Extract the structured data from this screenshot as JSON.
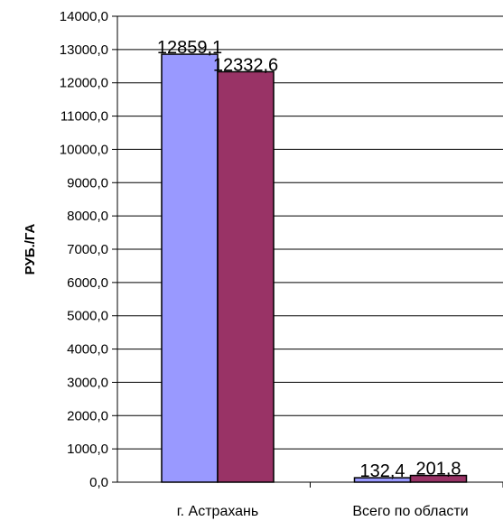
{
  "chart_data": {
    "type": "bar",
    "title": "",
    "xlabel": "",
    "ylabel": "РУБ./ГА",
    "ylim": [
      0,
      14000
    ],
    "ytick_step": 1000,
    "ytick_labels": [
      "0,0",
      "1000,0",
      "2000,0",
      "3000,0",
      "4000,0",
      "5000,0",
      "6000,0",
      "7000,0",
      "8000,0",
      "9000,0",
      "10000,0",
      "11000,0",
      "12000,0",
      "13000,0",
      "14000,0"
    ],
    "grid": true,
    "legend": "none",
    "categories": [
      "г. Астрахань",
      "Всего по области"
    ],
    "series": [
      {
        "values": [
          12859.1,
          132.4
        ],
        "labels": [
          "12859,1",
          "132,4"
        ],
        "color": "#9999ff"
      },
      {
        "values": [
          12332.6,
          201.8
        ],
        "labels": [
          "12332,6",
          "201,8"
        ],
        "color": "#993366"
      }
    ]
  }
}
